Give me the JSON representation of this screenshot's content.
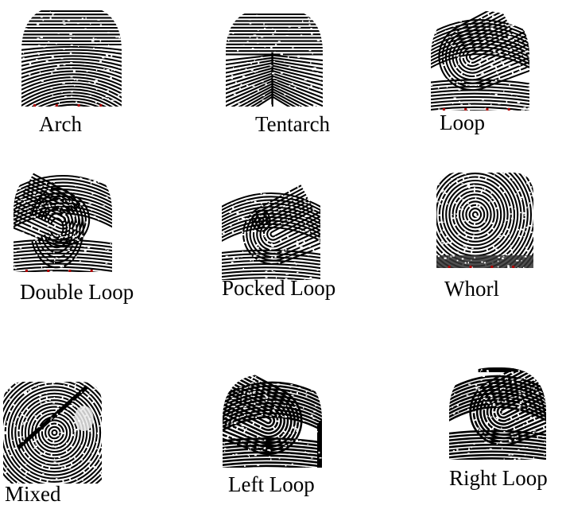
{
  "figure": {
    "cells": [
      {
        "label": "Arch",
        "pattern": "arch"
      },
      {
        "label": "Tentarch",
        "pattern": "tented-arch"
      },
      {
        "label": "Loop",
        "pattern": "loop"
      },
      {
        "label": "Double Loop",
        "pattern": "double-loop"
      },
      {
        "label": "Pocked Loop",
        "pattern": "central-pocket-loop"
      },
      {
        "label": "Whorl",
        "pattern": "whorl"
      },
      {
        "label": "Mixed",
        "pattern": "accidental"
      },
      {
        "label": "Left Loop",
        "pattern": "left-loop"
      },
      {
        "label": "Right Loop",
        "pattern": "right-loop"
      }
    ],
    "colors": {
      "ink": "#000000",
      "paper": "#ffffff",
      "smudge": "#333333",
      "marker": "#b00000"
    }
  }
}
